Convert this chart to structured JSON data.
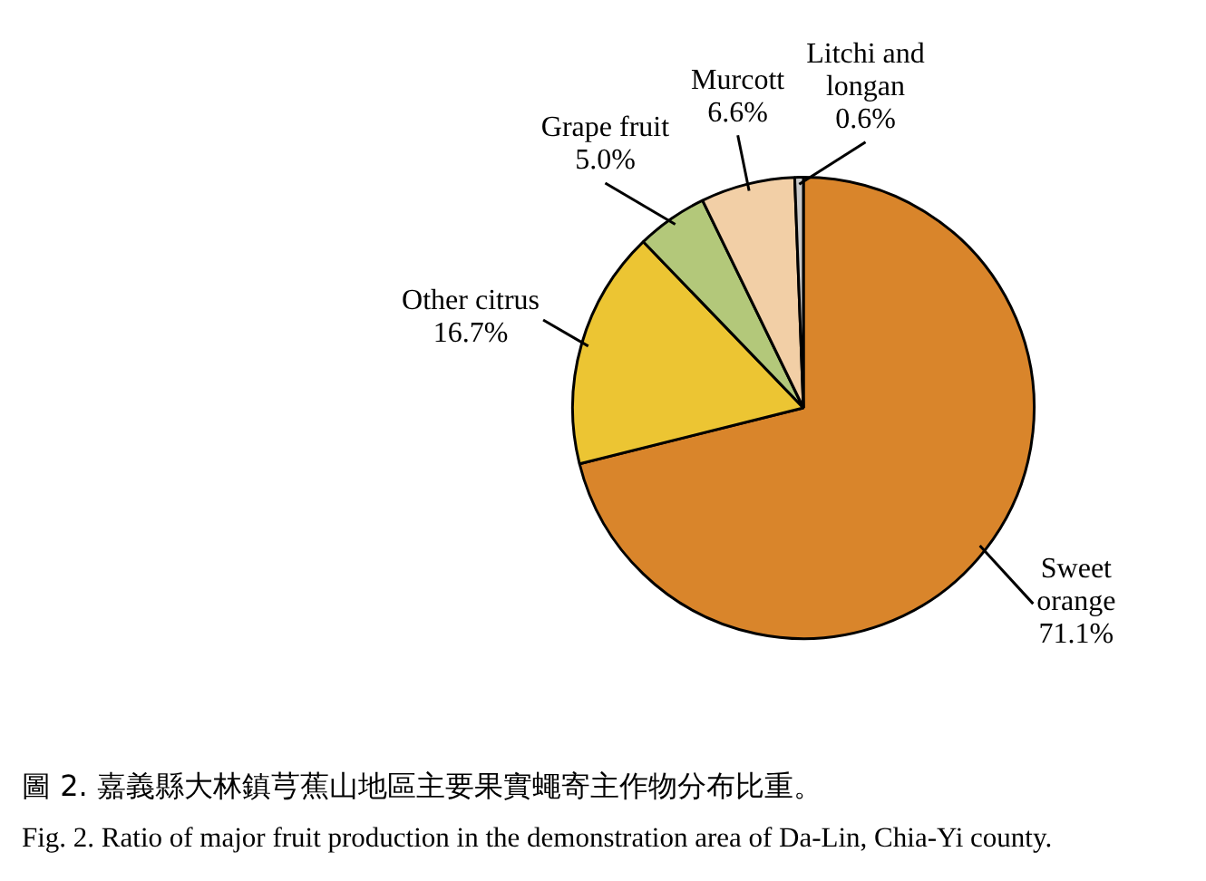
{
  "chart_data": {
    "type": "pie",
    "title": "圖 2. 嘉義縣大林鎮芎蕉山地區主要果實蠅寄主作物分布比重。",
    "subtitle": "Fig. 2. Ratio of major fruit production in the demonstration area of Da-Lin, Chia-Yi county.",
    "categories": [
      "Sweet orange",
      "Other citrus",
      "Grape fruit",
      "Murcott",
      "Litchi and longan"
    ],
    "values": [
      71.1,
      16.7,
      5.0,
      6.6,
      0.6
    ],
    "colors": [
      "#d9852b",
      "#ecc533",
      "#b3c87a",
      "#f2cfa6",
      "#c9c9c9"
    ],
    "value_labels": [
      "71.1%",
      "16.7%",
      "5.0%",
      "6.6%",
      "0.6%"
    ],
    "legend": false
  }
}
